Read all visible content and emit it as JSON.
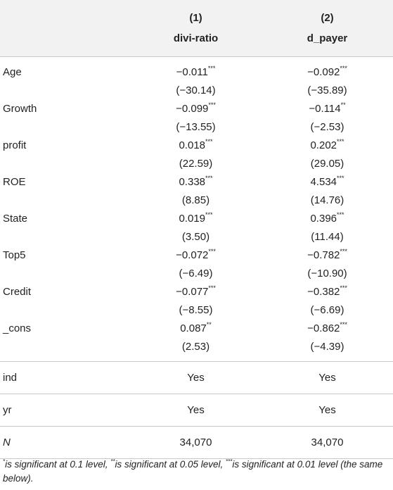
{
  "header": {
    "col1_num": "(1)",
    "col2_num": "(2)",
    "col1_name": "divi-ratio",
    "col2_name": "d_payer"
  },
  "rows": [
    {
      "label": "Age",
      "v1": "−0.011",
      "s1": "***",
      "v2": "−0.092",
      "s2": "***",
      "t1": "(−30.14)",
      "t2": "(−35.89)"
    },
    {
      "label": "Growth",
      "v1": "−0.099",
      "s1": "***",
      "v2": "−0.114",
      "s2": "**",
      "t1": "(−13.55)",
      "t2": "(−2.53)"
    },
    {
      "label": "profit",
      "v1": "0.018",
      "s1": "***",
      "v2": "0.202",
      "s2": "***",
      "t1": "(22.59)",
      "t2": "(29.05)"
    },
    {
      "label": "ROE",
      "v1": "0.338",
      "s1": "***",
      "v2": "4.534",
      "s2": "***",
      "t1": "(8.85)",
      "t2": "(14.76)"
    },
    {
      "label": "State",
      "v1": "0.019",
      "s1": "***",
      "v2": "0.396",
      "s2": "***",
      "t1": "(3.50)",
      "t2": "(11.44)"
    },
    {
      "label": "Top5",
      "v1": "−0.072",
      "s1": "***",
      "v2": "−0.782",
      "s2": "***",
      "t1": "(−6.49)",
      "t2": "(−10.90)"
    },
    {
      "label": "Credit",
      "v1": "−0.077",
      "s1": "***",
      "v2": "−0.382",
      "s2": "***",
      "t1": "(−8.55)",
      "t2": "(−6.69)"
    },
    {
      "label": "_cons",
      "v1": "0.087",
      "s1": "**",
      "v2": "−0.862",
      "s2": "***",
      "t1": "(2.53)",
      "t2": "(−4.39)"
    }
  ],
  "footer_rows": [
    {
      "label": "ind",
      "v1": "Yes",
      "v2": "Yes"
    },
    {
      "label": "yr",
      "v1": "Yes",
      "v2": "Yes"
    },
    {
      "label": "N",
      "v1": "34,070",
      "v2": "34,070"
    }
  ],
  "note": {
    "s1": "*",
    "t1": "is significant at 0.1 level, ",
    "s2": "**",
    "t2": "is significant at 0.05 level, ",
    "s3": "***",
    "t3": "is significant at 0.01 level (the same below)."
  }
}
